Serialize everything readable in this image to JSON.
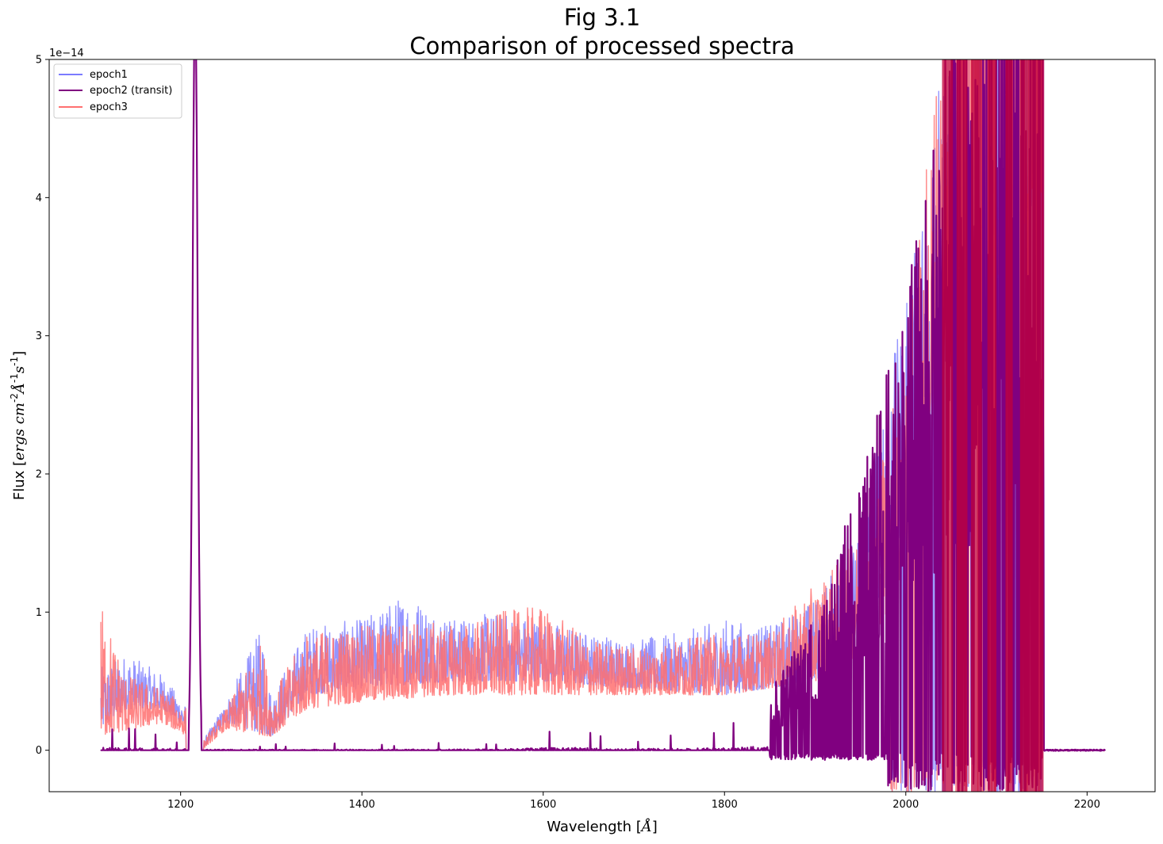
{
  "chart_data": {
    "type": "line",
    "title": "Fig 3.1",
    "subtitle": "Comparison of processed spectra",
    "xlabel_text": "Wavelength",
    "xlabel_unit": "Å",
    "ylabel_text": "Flux",
    "ylabel_unit_parts": [
      "ergs",
      "cm",
      "-2",
      "Å",
      "-1",
      "s",
      "-1"
    ],
    "y_offset_text": "1e−14",
    "xlim": [
      1055,
      2275
    ],
    "ylim": [
      -0.3,
      5
    ],
    "xticks": [
      1200,
      1400,
      1600,
      1800,
      2000,
      2200
    ],
    "xtick_labels": [
      "1200",
      "1400",
      "1600",
      "1800",
      "2000",
      "2200"
    ],
    "yticks": [
      0,
      1,
      2,
      3,
      4,
      5
    ],
    "ytick_labels": [
      "0",
      "1",
      "2",
      "3",
      "4",
      "5"
    ],
    "legend_position": "upper-left",
    "series": [
      {
        "name": "epoch1",
        "color": "#7b7bff",
        "envelope": [
          [
            1112,
            0.6
          ],
          [
            1140,
            0.7
          ],
          [
            1180,
            0.55
          ],
          [
            1208,
            0.3
          ],
          [
            1223,
            0.05
          ],
          [
            1250,
            0.35
          ],
          [
            1290,
            0.9
          ],
          [
            1300,
            0.4
          ],
          [
            1340,
            0.9
          ],
          [
            1400,
            0.95
          ],
          [
            1450,
            1.15
          ],
          [
            1500,
            0.95
          ],
          [
            1550,
            1.0
          ],
          [
            1600,
            0.95
          ],
          [
            1650,
            0.85
          ],
          [
            1700,
            0.8
          ],
          [
            1750,
            0.85
          ],
          [
            1800,
            0.95
          ],
          [
            1850,
            0.9
          ],
          [
            1900,
            1.1
          ],
          [
            1950,
            1.6
          ],
          [
            1975,
            2.6
          ],
          [
            2000,
            3.2
          ],
          [
            2030,
            4.8
          ],
          [
            2150,
            5.5
          ]
        ],
        "baseline": [
          [
            1112,
            0.15
          ],
          [
            1140,
            0.3
          ],
          [
            1180,
            0.3
          ],
          [
            1208,
            0.15
          ],
          [
            1223,
            0.0
          ],
          [
            1250,
            0.2
          ],
          [
            1300,
            0.1
          ],
          [
            1340,
            0.4
          ],
          [
            1400,
            0.45
          ],
          [
            1500,
            0.5
          ],
          [
            1600,
            0.5
          ],
          [
            1700,
            0.45
          ],
          [
            1800,
            0.4
          ],
          [
            1900,
            0.5
          ],
          [
            1950,
            0.8
          ],
          [
            2000,
            1.5
          ],
          [
            2050,
            3.0
          ],
          [
            2150,
            4.0
          ]
        ]
      },
      {
        "name": "epoch2 (transit)",
        "color": "#800080",
        "envelope": [
          [
            1112,
            0.2
          ],
          [
            1208,
            0.1
          ],
          [
            1230,
            0.05
          ],
          [
            1400,
            0.05
          ],
          [
            1550,
            0.08
          ],
          [
            1620,
            0.2
          ],
          [
            1700,
            0.1
          ],
          [
            1800,
            0.15
          ],
          [
            1850,
            0.4
          ],
          [
            1900,
            0.9
          ],
          [
            1950,
            1.8
          ],
          [
            2000,
            3.0
          ],
          [
            2040,
            4.5
          ],
          [
            2150,
            6.0
          ]
        ],
        "baseline": [
          [
            1112,
            0.0
          ],
          [
            1400,
            0.0
          ],
          [
            1800,
            0.0
          ],
          [
            1900,
            0.0
          ],
          [
            2000,
            0.1
          ],
          [
            2150,
            0.2
          ]
        ]
      },
      {
        "name": "epoch3",
        "color": "#ff7070",
        "envelope": [
          [
            1112,
            1.08
          ],
          [
            1140,
            0.55
          ],
          [
            1180,
            0.45
          ],
          [
            1208,
            0.3
          ],
          [
            1223,
            0.05
          ],
          [
            1250,
            0.3
          ],
          [
            1290,
            0.8
          ],
          [
            1300,
            0.4
          ],
          [
            1340,
            0.85
          ],
          [
            1400,
            0.9
          ],
          [
            1450,
            0.95
          ],
          [
            1500,
            0.9
          ],
          [
            1550,
            1.0
          ],
          [
            1600,
            1.05
          ],
          [
            1650,
            0.8
          ],
          [
            1700,
            0.75
          ],
          [
            1750,
            0.8
          ],
          [
            1800,
            0.85
          ],
          [
            1850,
            0.85
          ],
          [
            1900,
            1.2
          ],
          [
            1950,
            1.55
          ],
          [
            1975,
            2.2
          ],
          [
            2000,
            3.0
          ],
          [
            2030,
            4.8
          ],
          [
            2150,
            5.5
          ]
        ],
        "baseline": [
          [
            1112,
            0.1
          ],
          [
            1180,
            0.2
          ],
          [
            1208,
            0.1
          ],
          [
            1223,
            0.0
          ],
          [
            1250,
            0.15
          ],
          [
            1300,
            0.1
          ],
          [
            1340,
            0.3
          ],
          [
            1400,
            0.35
          ],
          [
            1500,
            0.4
          ],
          [
            1600,
            0.4
          ],
          [
            1700,
            0.4
          ],
          [
            1800,
            0.4
          ],
          [
            1900,
            0.5
          ],
          [
            1950,
            0.7
          ],
          [
            2000,
            1.2
          ],
          [
            2050,
            2.5
          ],
          [
            2150,
            4.0
          ]
        ]
      }
    ],
    "overlap_color": "#c0003a",
    "lyman_alpha_peak": {
      "x": 1216,
      "y": 5.5
    },
    "x_range_data": [
      1112,
      2220
    ],
    "spikes_end": 2152
  }
}
